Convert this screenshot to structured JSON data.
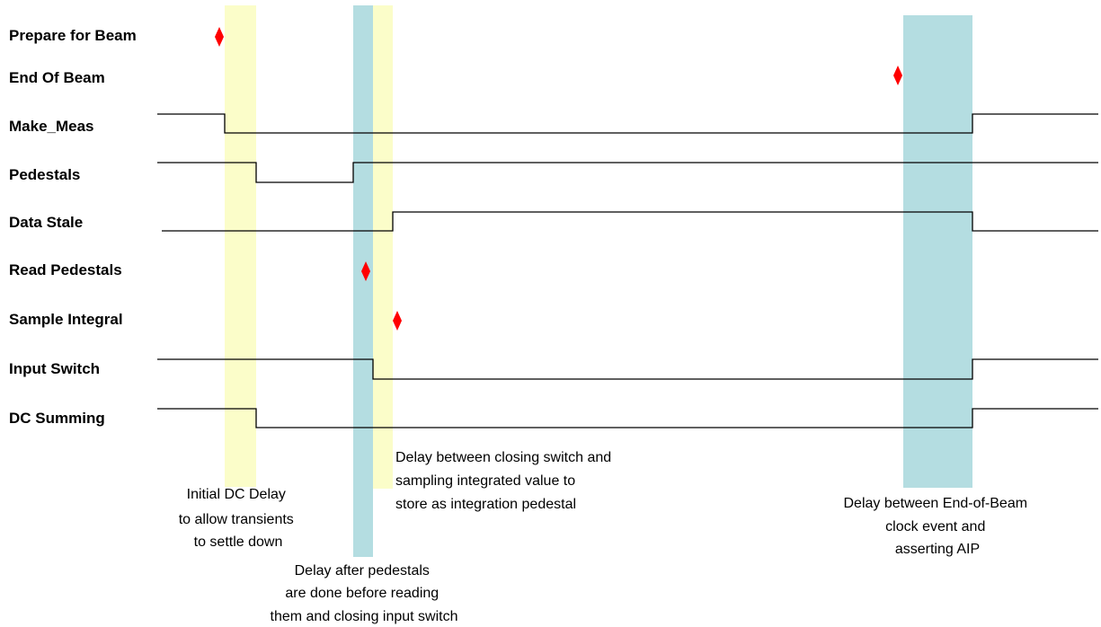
{
  "signals": [
    {
      "id": "prepare-for-beam",
      "label": "Prepare for Beam"
    },
    {
      "id": "end-of-beam",
      "label": "End Of Beam"
    },
    {
      "id": "make-meas",
      "label": "Make_Meas"
    },
    {
      "id": "pedestals",
      "label": "Pedestals"
    },
    {
      "id": "data-stale",
      "label": "Data Stale"
    },
    {
      "id": "read-pedestals",
      "label": "Read Pedestals"
    },
    {
      "id": "sample-integral",
      "label": "Sample Integral"
    },
    {
      "id": "input-switch",
      "label": "Input Switch"
    },
    {
      "id": "dc-summing",
      "label": "DC Summing"
    }
  ],
  "annotations": {
    "initial_dc_delay": [
      "Initial DC Delay",
      "to allow transients",
      "to settle down"
    ],
    "pedestal_delay": [
      "Delay after pedestals",
      "are done before reading",
      "them and closing input switch"
    ],
    "switch_sampling_delay": [
      "Delay between closing switch and",
      "sampling integrated value to",
      "store as integration pedestal"
    ],
    "end_of_beam_delay": [
      "Delay between End-of-Beam",
      "clock event and",
      "asserting AIP"
    ]
  },
  "colors": {
    "yellow_band": "#fbfdc9",
    "blue_band": "#b4dde1",
    "event_marker": "#ff0000",
    "waveform": "#000000"
  }
}
